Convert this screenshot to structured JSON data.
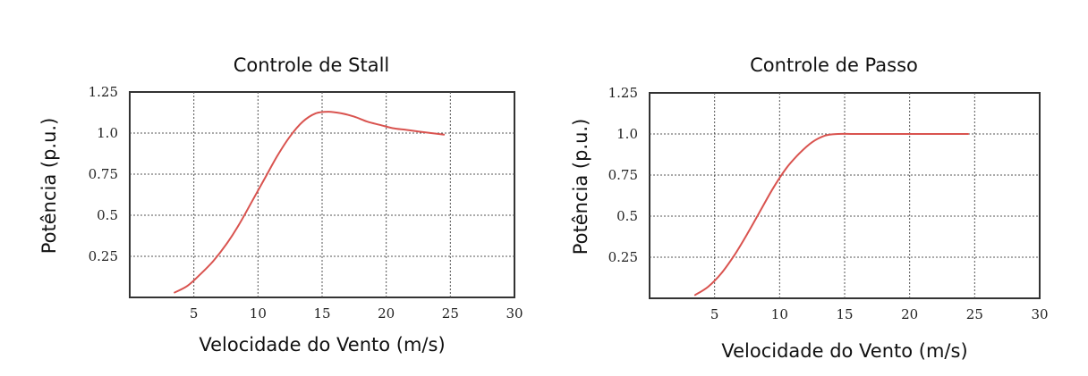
{
  "chart_data": [
    {
      "type": "line",
      "title": "Controle de Stall",
      "xlabel": "Velocidade do Vento (m/s)",
      "ylabel": "Potência (p.u.)",
      "xlim": [
        0,
        30
      ],
      "ylim": [
        0,
        1.25
      ],
      "x_ticks": [
        5,
        10,
        15,
        20,
        25,
        30
      ],
      "x_tick_labels": [
        "5",
        "10",
        "15",
        "20",
        "25",
        "30"
      ],
      "y_ticks": [
        0.25,
        0.5,
        0.75,
        1.0,
        1.25
      ],
      "y_tick_labels": [
        "0.25",
        "0.5",
        "0.75",
        "1.0",
        "1.25"
      ],
      "grid": true,
      "line_color": "#d9534f",
      "series": [
        {
          "x": [
            3.5,
            4.5,
            5.5,
            6.5,
            7.5,
            8.5,
            9.5,
            10.5,
            11.5,
            12.5,
            13.5,
            14.5,
            15.5,
            16.5,
            17.5,
            18.5,
            19.5,
            20.5,
            21.5,
            22.5,
            23.5,
            24.5
          ],
          "y": [
            0.03,
            0.07,
            0.14,
            0.22,
            0.32,
            0.44,
            0.58,
            0.72,
            0.86,
            0.98,
            1.07,
            1.12,
            1.13,
            1.12,
            1.1,
            1.07,
            1.05,
            1.03,
            1.02,
            1.01,
            1.0,
            0.99
          ]
        }
      ]
    },
    {
      "type": "line",
      "title": "Controle de Passo",
      "xlabel": "Velocidade do Vento (m/s)",
      "ylabel": "Potência (p.u.)",
      "xlim": [
        0,
        30
      ],
      "ylim": [
        0,
        1.25
      ],
      "x_ticks": [
        5,
        10,
        15,
        20,
        25,
        30
      ],
      "x_tick_labels": [
        "5",
        "10",
        "15",
        "20",
        "25",
        "30"
      ],
      "y_ticks": [
        0.25,
        0.5,
        0.75,
        1.0,
        1.25
      ],
      "y_tick_labels": [
        "0.25",
        "0.5",
        "0.75",
        "1.0",
        "1.25"
      ],
      "grid": true,
      "line_color": "#d9534f",
      "series": [
        {
          "x": [
            3.5,
            4.5,
            5.5,
            6.5,
            7.5,
            8.5,
            9.5,
            10.5,
            11.5,
            12.5,
            13.5,
            14.5,
            15.5,
            17,
            19,
            21,
            23,
            24.5
          ],
          "y": [
            0.02,
            0.07,
            0.15,
            0.26,
            0.39,
            0.53,
            0.67,
            0.79,
            0.88,
            0.95,
            0.99,
            1.0,
            1.0,
            1.0,
            1.0,
            1.0,
            1.0,
            1.0
          ]
        }
      ]
    }
  ]
}
